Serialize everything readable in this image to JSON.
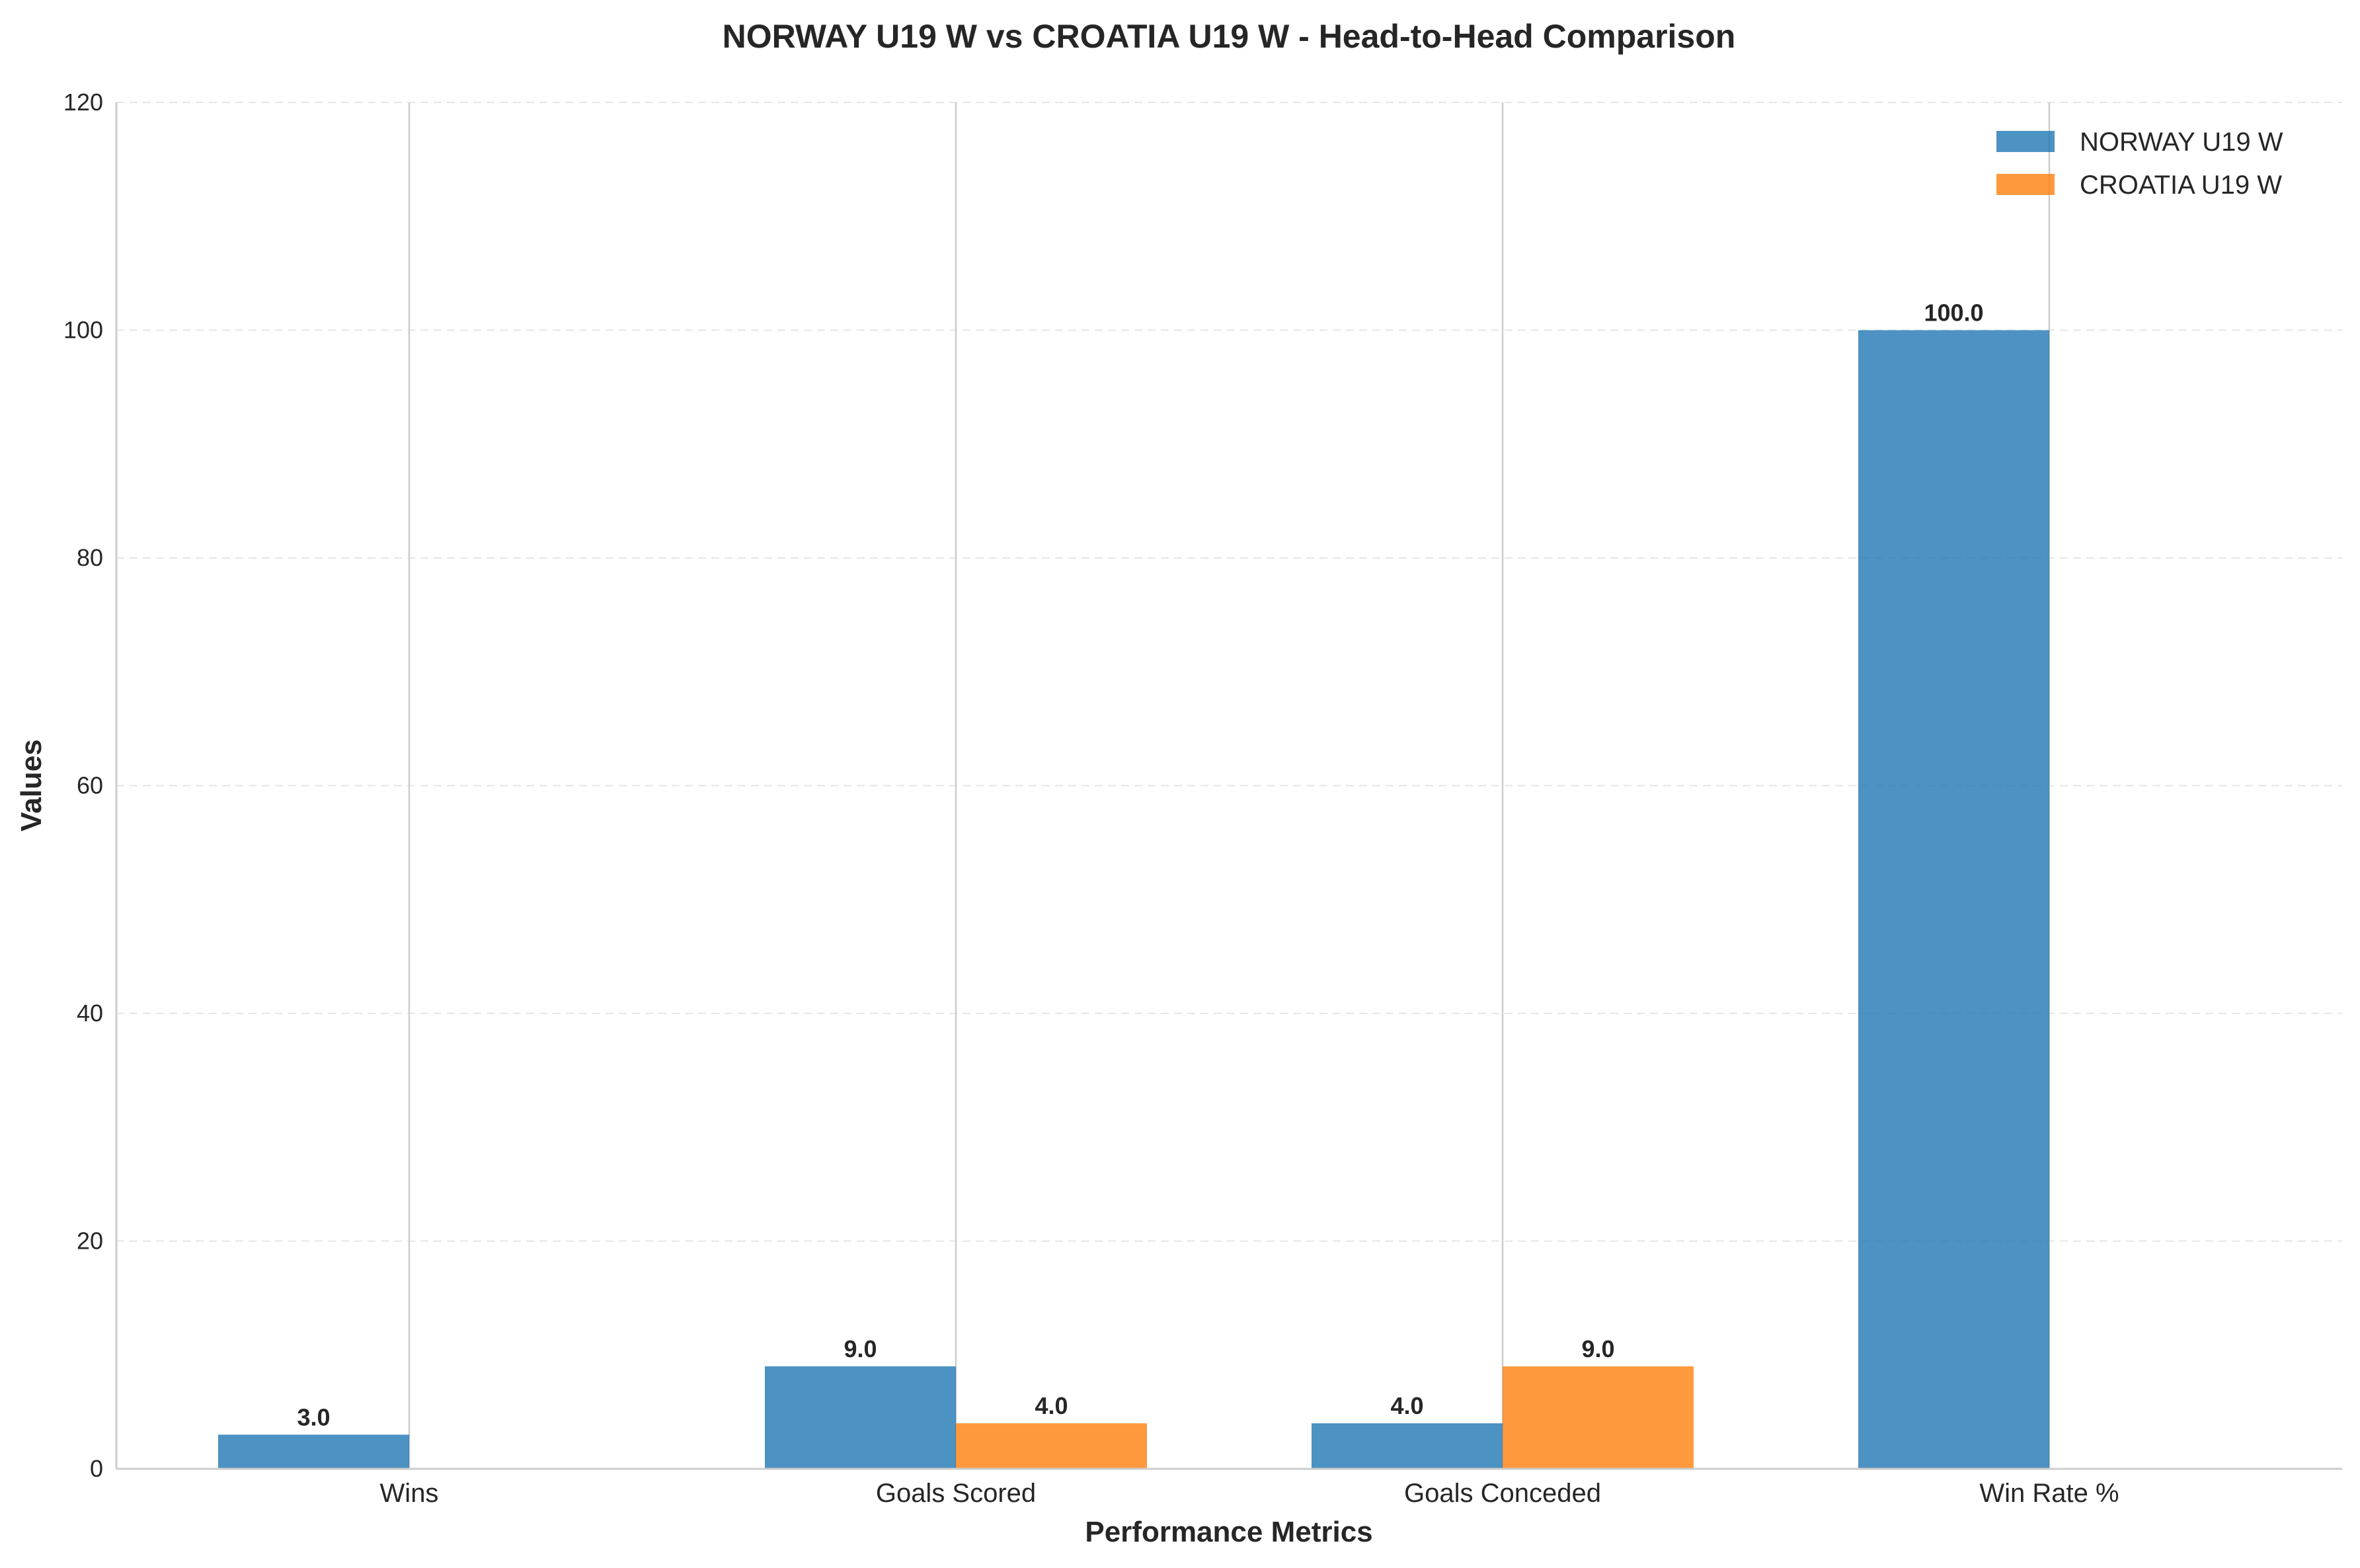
{
  "chart_data": {
    "type": "bar",
    "title": "NORWAY U19 W vs CROATIA U19 W - Head-to-Head Comparison",
    "xlabel": "Performance Metrics",
    "ylabel": "Values",
    "categories": [
      "Wins",
      "Goals Scored",
      "Goals Conceded",
      "Win Rate %"
    ],
    "series": [
      {
        "name": "NORWAY U19 W",
        "values": [
          3.0,
          9.0,
          4.0,
          100.0
        ],
        "color": "#1f77b4"
      },
      {
        "name": "CROATIA U19 W",
        "values": [
          0.0,
          4.0,
          9.0,
          0.0
        ],
        "color": "#ff7f0e"
      }
    ],
    "value_labels": [
      [
        "3.0",
        "9.0",
        "4.0",
        "100.0"
      ],
      [
        "",
        "4.0",
        "9.0",
        ""
      ]
    ],
    "ylim": [
      0,
      120
    ],
    "yticks": [
      0,
      20,
      40,
      60,
      80,
      100,
      120
    ],
    "grid": "y-dashed",
    "legend_position": "top-right"
  }
}
